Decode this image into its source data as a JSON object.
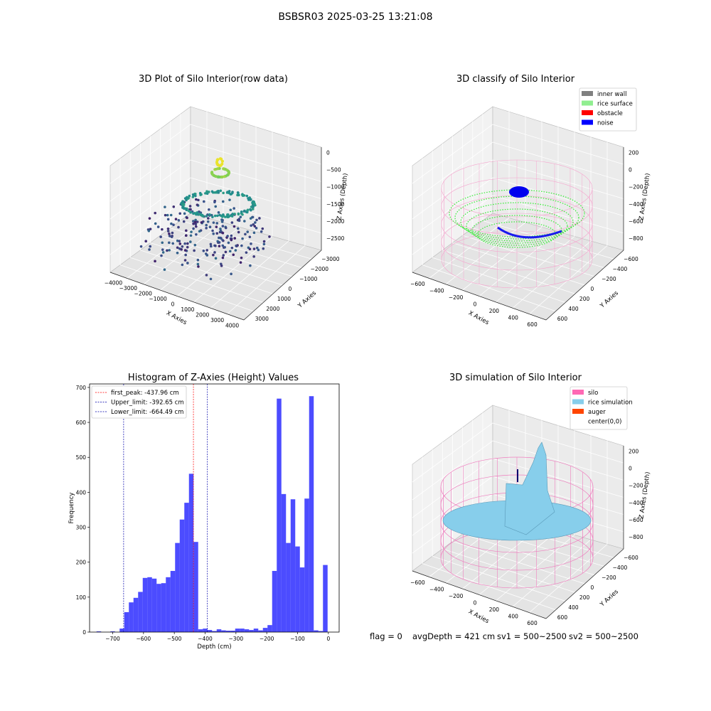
{
  "suptitle": "BSBSR03 2025-03-25 13:21:08",
  "panels": {
    "raw": {
      "title": "3D Plot of Silo Interior(row data)",
      "xlabel": "X Axies",
      "ylabel": "Y Axies",
      "zlabel": "Z Axies (Depth)",
      "xticks": [
        "−4000",
        "−3000",
        "−2000",
        "−1000",
        "0",
        "1000",
        "2000",
        "3000",
        "4000"
      ],
      "yticks": [
        "3000",
        "2000",
        "1000",
        "0",
        "−1000",
        "−2000",
        "−3000"
      ],
      "zticks": [
        "0",
        "−500",
        "−1000",
        "−1500",
        "−2000",
        "−2500"
      ]
    },
    "classify": {
      "title": "3D classify of Silo Interior",
      "xlabel": "X Axies",
      "ylabel": "Y Axies",
      "zlabel": "Z Axies (Depth)",
      "xticks": [
        "−600",
        "−400",
        "−200",
        "0",
        "200",
        "400",
        "600"
      ],
      "yticks": [
        "600",
        "400",
        "200",
        "0",
        "−200",
        "−400",
        "−600"
      ],
      "zticks": [
        "200",
        "0",
        "−200",
        "−400",
        "−600",
        "−800"
      ],
      "legend": [
        {
          "label": "inner wall",
          "color": "#808080"
        },
        {
          "label": "rice surface",
          "color": "#90ee90"
        },
        {
          "label": "obstacle",
          "color": "#ff0000"
        },
        {
          "label": "noise",
          "color": "#0000ff"
        }
      ]
    },
    "simulation": {
      "title": "3D simulation of Silo Interior",
      "xlabel": "X Axies",
      "ylabel": "Y Axies",
      "zlabel": "Z Axies (Depth)",
      "xticks": [
        "−600",
        "−400",
        "−200",
        "0",
        "200",
        "400",
        "600"
      ],
      "yticks": [
        "600",
        "400",
        "200",
        "0",
        "−200",
        "−400",
        "−600"
      ],
      "zticks": [
        "200",
        "0",
        "−200",
        "−400",
        "−600",
        "−800"
      ],
      "legend": [
        {
          "label": "silo",
          "color": "#ff69b4"
        },
        {
          "label": "rice simulation",
          "color": "#87ceeb"
        },
        {
          "label": "auger",
          "color": "#ff4500"
        },
        {
          "label": "center(0,0)",
          "color": ""
        }
      ]
    }
  },
  "chart_data": {
    "type": "bar",
    "title": "Histogram of Z-Axies (Height) Values",
    "xlabel": "Depth (cm)",
    "ylabel": "Frequency",
    "xlim": [
      -775,
      35
    ],
    "ylim": [
      0,
      710
    ],
    "xticks": [
      -700,
      -600,
      -500,
      -400,
      -300,
      -200,
      -100,
      0
    ],
    "yticks": [
      0,
      100,
      200,
      300,
      400,
      500,
      600,
      700
    ],
    "bar_color": "#0000ff",
    "bin_width": 15,
    "bins": [
      {
        "x": -745,
        "count": 2
      },
      {
        "x": -700,
        "count": 2
      },
      {
        "x": -670,
        "count": 10
      },
      {
        "x": -655,
        "count": 57
      },
      {
        "x": -640,
        "count": 85
      },
      {
        "x": -625,
        "count": 98
      },
      {
        "x": -610,
        "count": 115
      },
      {
        "x": -595,
        "count": 155
      },
      {
        "x": -580,
        "count": 157
      },
      {
        "x": -565,
        "count": 153
      },
      {
        "x": -550,
        "count": 138
      },
      {
        "x": -535,
        "count": 140
      },
      {
        "x": -520,
        "count": 157
      },
      {
        "x": -505,
        "count": 175
      },
      {
        "x": -490,
        "count": 255
      },
      {
        "x": -475,
        "count": 322
      },
      {
        "x": -460,
        "count": 370
      },
      {
        "x": -445,
        "count": 453
      },
      {
        "x": -430,
        "count": 258
      },
      {
        "x": -415,
        "count": 8
      },
      {
        "x": -400,
        "count": 10
      },
      {
        "x": -385,
        "count": 6
      },
      {
        "x": -370,
        "count": 3
      },
      {
        "x": -355,
        "count": 8
      },
      {
        "x": -340,
        "count": 5
      },
      {
        "x": -325,
        "count": 4
      },
      {
        "x": -310,
        "count": 4
      },
      {
        "x": -295,
        "count": 10
      },
      {
        "x": -280,
        "count": 10
      },
      {
        "x": -265,
        "count": 8
      },
      {
        "x": -250,
        "count": 6
      },
      {
        "x": -235,
        "count": 10
      },
      {
        "x": -220,
        "count": 5
      },
      {
        "x": -205,
        "count": 12
      },
      {
        "x": -190,
        "count": 20
      },
      {
        "x": -175,
        "count": 175
      },
      {
        "x": -160,
        "count": 668
      },
      {
        "x": -145,
        "count": 395
      },
      {
        "x": -130,
        "count": 255
      },
      {
        "x": -115,
        "count": 380
      },
      {
        "x": -100,
        "count": 245
      },
      {
        "x": -85,
        "count": 185
      },
      {
        "x": -70,
        "count": 382
      },
      {
        "x": -55,
        "count": 675
      },
      {
        "x": -40,
        "count": 5
      },
      {
        "x": -25,
        "count": 3
      },
      {
        "x": -10,
        "count": 192
      }
    ],
    "lines": [
      {
        "label": "first_peak: -437.96 cm",
        "x": -437.96,
        "color": "#ff0000"
      },
      {
        "label": "Upper_limit: -392.65 cm",
        "x": -392.65,
        "color": "#0000aa"
      },
      {
        "label": "Lower_limit: -664.49 cm",
        "x": -664.49,
        "color": "#0000aa"
      }
    ]
  },
  "footer": {
    "flag": "flag = 0",
    "avg": "avgDepth = 421 cm",
    "sv1": "sv1 = 500~2500",
    "sv2": "sv2 = 500~2500"
  }
}
